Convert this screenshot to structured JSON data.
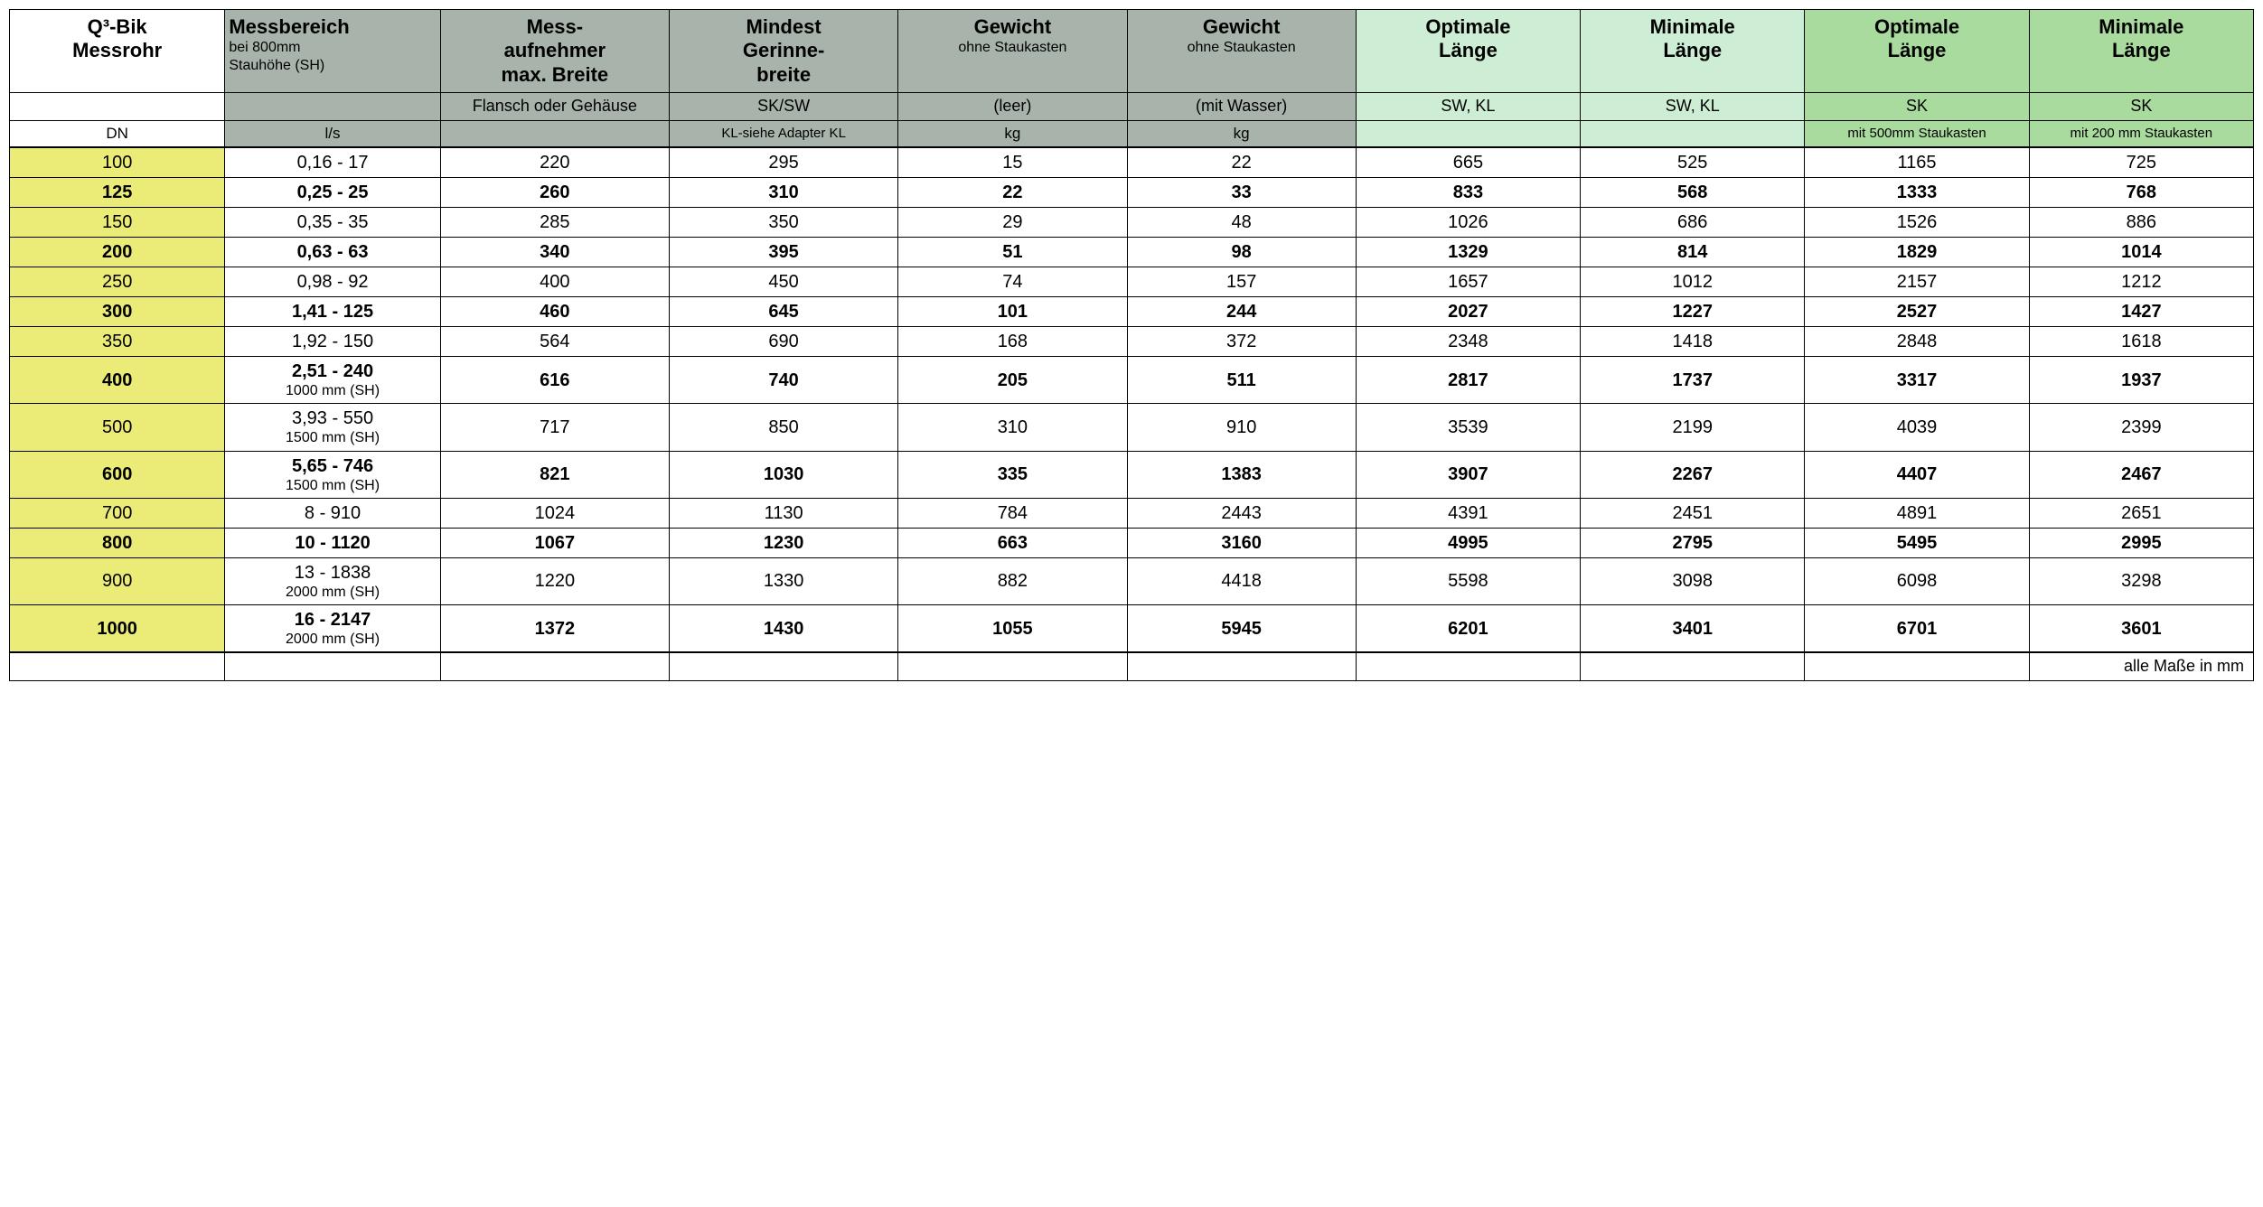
{
  "colors": {
    "dn_bg": "#ebeb78",
    "gray_bg": "#a8b4ab",
    "light_green_bg": "#cdeed4",
    "dark_green_bg": "#a9db9e",
    "border": "#000000",
    "text": "#000000"
  },
  "typography": {
    "header_fontsize_pt": 16,
    "subheader_fontsize_pt": 13,
    "body_fontsize_pt": 15,
    "footer_fontsize_pt": 13,
    "font_family": "Arial"
  },
  "structure": {
    "type": "table",
    "columns": 10,
    "column_widths_pct": [
      9.6,
      9.6,
      10.2,
      10.2,
      10.2,
      10.2,
      10,
      10,
      10,
      10
    ]
  },
  "headers": {
    "row1": {
      "c0_line1": "Q³-Bik",
      "c0_line2": "Messrohr",
      "c1_bold": "Messbereich",
      "c1_sub1": "bei 800mm",
      "c1_sub2": "Stauhöhe (SH)",
      "c2_line1": "Mess-",
      "c2_line2": "aufnehmer",
      "c2_line3": "max. Breite",
      "c3_line1": "Mindest",
      "c3_line2": "Gerinne-",
      "c3_line3": "breite",
      "c4_bold": "Gewicht",
      "c4_sub": "ohne Staukasten",
      "c5_bold": "Gewicht",
      "c5_sub": "ohne Staukasten",
      "c6_line1": "Optimale",
      "c6_line2": "Länge",
      "c7_line1": "Minimale",
      "c7_line2": "Länge",
      "c8_line1": "Optimale",
      "c8_line2": "Länge",
      "c9_line1": "Minimale",
      "c9_line2": "Länge"
    },
    "row2": {
      "c0": "",
      "c1": "",
      "c2": "Flansch oder Gehäuse",
      "c3": "SK/SW",
      "c4": "(leer)",
      "c5": "(mit Wasser)",
      "c6": "SW, KL",
      "c7": "SW, KL",
      "c8": "SK",
      "c9": "SK"
    },
    "row3": {
      "c0": "DN",
      "c1": "l/s",
      "c2": "",
      "c3": "KL-siehe Adapter KL",
      "c4": "kg",
      "c5": "kg",
      "c6": "",
      "c7": "",
      "c8": "mit 500mm Staukasten",
      "c9": "mit 200 mm Staukasten"
    }
  },
  "rows": [
    {
      "bold": false,
      "dn": "100",
      "mb": "0,16 - 17",
      "mb_sub": "",
      "ma": "220",
      "mg": "295",
      "g1": "15",
      "g2": "22",
      "ol1": "665",
      "ml1": "525",
      "ol2": "1165",
      "ml2": "725"
    },
    {
      "bold": true,
      "dn": "125",
      "mb": "0,25 - 25",
      "mb_sub": "",
      "ma": "260",
      "mg": "310",
      "g1": "22",
      "g2": "33",
      "ol1": "833",
      "ml1": "568",
      "ol2": "1333",
      "ml2": "768"
    },
    {
      "bold": false,
      "dn": "150",
      "mb": "0,35 - 35",
      "mb_sub": "",
      "ma": "285",
      "mg": "350",
      "g1": "29",
      "g2": "48",
      "ol1": "1026",
      "ml1": "686",
      "ol2": "1526",
      "ml2": "886"
    },
    {
      "bold": true,
      "dn": "200",
      "mb": "0,63 - 63",
      "mb_sub": "",
      "ma": "340",
      "mg": "395",
      "g1": "51",
      "g2": "98",
      "ol1": "1329",
      "ml1": "814",
      "ol2": "1829",
      "ml2": "1014"
    },
    {
      "bold": false,
      "dn": "250",
      "mb": "0,98 - 92",
      "mb_sub": "",
      "ma": "400",
      "mg": "450",
      "g1": "74",
      "g2": "157",
      "ol1": "1657",
      "ml1": "1012",
      "ol2": "2157",
      "ml2": "1212"
    },
    {
      "bold": true,
      "dn": "300",
      "mb": "1,41 - 125",
      "mb_sub": "",
      "ma": "460",
      "mg": "645",
      "g1": "101",
      "g2": "244",
      "ol1": "2027",
      "ml1": "1227",
      "ol2": "2527",
      "ml2": "1427"
    },
    {
      "bold": false,
      "dn": "350",
      "mb": "1,92 - 150",
      "mb_sub": "",
      "ma": "564",
      "mg": "690",
      "g1": "168",
      "g2": "372",
      "ol1": "2348",
      "ml1": "1418",
      "ol2": "2848",
      "ml2": "1618"
    },
    {
      "bold": true,
      "dn": "400",
      "mb": "2,51 - 240",
      "mb_sub": "1000 mm (SH)",
      "ma": "616",
      "mg": "740",
      "g1": "205",
      "g2": "511",
      "ol1": "2817",
      "ml1": "1737",
      "ol2": "3317",
      "ml2": "1937"
    },
    {
      "bold": false,
      "dn": "500",
      "mb": "3,93 - 550",
      "mb_sub": "1500 mm (SH)",
      "ma": "717",
      "mg": "850",
      "g1": "310",
      "g2": "910",
      "ol1": "3539",
      "ml1": "2199",
      "ol2": "4039",
      "ml2": "2399"
    },
    {
      "bold": true,
      "dn": "600",
      "mb": "5,65 - 746",
      "mb_sub": "1500 mm (SH)",
      "ma": "821",
      "mg": "1030",
      "g1": "335",
      "g2": "1383",
      "ol1": "3907",
      "ml1": "2267",
      "ol2": "4407",
      "ml2": "2467"
    },
    {
      "bold": false,
      "dn": "700",
      "mb": "8 - 910",
      "mb_sub": "",
      "ma": "1024",
      "mg": "1130",
      "g1": "784",
      "g2": "2443",
      "ol1": "4391",
      "ml1": "2451",
      "ol2": "4891",
      "ml2": "2651"
    },
    {
      "bold": true,
      "dn": "800",
      "mb": "10 - 1120",
      "mb_sub": "",
      "ma": "1067",
      "mg": "1230",
      "g1": "663",
      "g2": "3160",
      "ol1": "4995",
      "ml1": "2795",
      "ol2": "5495",
      "ml2": "2995"
    },
    {
      "bold": false,
      "dn": "900",
      "mb": "13 - 1838",
      "mb_sub": "2000 mm (SH)",
      "ma": "1220",
      "mg": "1330",
      "g1": "882",
      "g2": "4418",
      "ol1": "5598",
      "ml1": "3098",
      "ol2": "6098",
      "ml2": "3298"
    },
    {
      "bold": true,
      "dn": "1000",
      "mb": "16 - 2147",
      "mb_sub": "2000 mm (SH)",
      "ma": "1372",
      "mg": "1430",
      "g1": "1055",
      "g2": "5945",
      "ol1": "6201",
      "ml1": "3401",
      "ol2": "6701",
      "ml2": "3601"
    }
  ],
  "footer": "alle Maße in mm"
}
